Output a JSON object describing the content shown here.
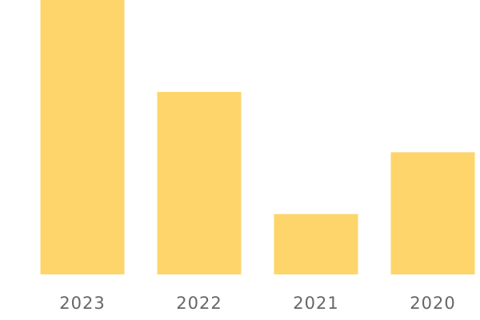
{
  "chart_data": {
    "type": "bar",
    "categories": [
      "2023",
      "2022",
      "2021",
      "2020"
    ],
    "values": [
      100,
      66.5,
      22,
      44.5
    ],
    "color": "#fdd56a",
    "ylim": [
      0,
      100
    ]
  }
}
